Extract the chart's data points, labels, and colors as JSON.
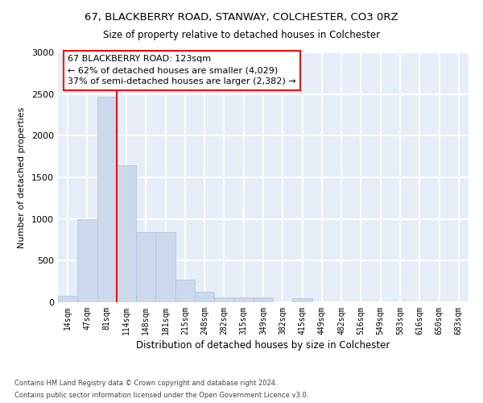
{
  "title_line1": "67, BLACKBERRY ROAD, STANWAY, COLCHESTER, CO3 0RZ",
  "title_line2": "Size of property relative to detached houses in Colchester",
  "xlabel": "Distribution of detached houses by size in Colchester",
  "ylabel": "Number of detached properties",
  "bar_labels": [
    "14sqm",
    "47sqm",
    "81sqm",
    "114sqm",
    "148sqm",
    "181sqm",
    "215sqm",
    "248sqm",
    "282sqm",
    "315sqm",
    "349sqm",
    "382sqm",
    "415sqm",
    "449sqm",
    "482sqm",
    "516sqm",
    "549sqm",
    "583sqm",
    "616sqm",
    "650sqm",
    "683sqm"
  ],
  "bar_values": [
    75,
    1000,
    2470,
    1650,
    840,
    840,
    275,
    130,
    55,
    55,
    55,
    0,
    45,
    0,
    0,
    0,
    0,
    0,
    0,
    0,
    0
  ],
  "bar_color": "#ccd9ed",
  "bar_edge_color": "#b0c4de",
  "property_label": "67 BLACKBERRY ROAD: 123sqm",
  "annotation_line1": "← 62% of detached houses are smaller (4,029)",
  "annotation_line2": "37% of semi-detached houses are larger (2,382) →",
  "vline_x": 3.0,
  "ylim": [
    0,
    3000
  ],
  "yticks": [
    0,
    500,
    1000,
    1500,
    2000,
    2500,
    3000
  ],
  "bg_color": "#e8eef8",
  "footer_line1": "Contains HM Land Registry data © Crown copyright and database right 2024.",
  "footer_line2": "Contains public sector information licensed under the Open Government Licence v3.0."
}
